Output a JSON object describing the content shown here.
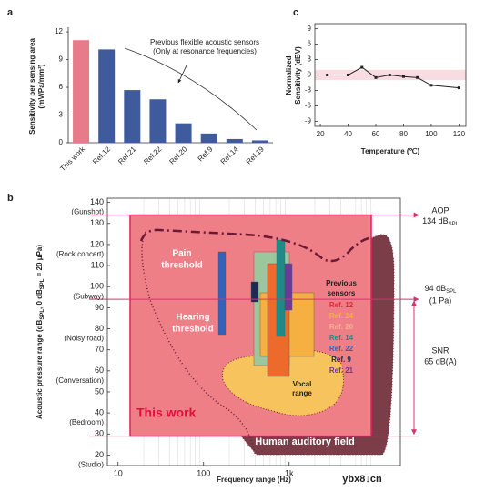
{
  "chart_data": [
    {
      "type": "bar",
      "panel": "a",
      "y_label": [
        "Sensitivity per sensing area",
        "(mV/Pa/mm²)"
      ],
      "categories": [
        "This work",
        "Ref.12",
        "Ref.21",
        "Ref.22",
        "Ref.20",
        "Ref.9",
        "Ref.14",
        "Ref.19"
      ],
      "values": [
        11.1,
        10.1,
        5.7,
        4.7,
        2.1,
        1.0,
        0.4,
        0.25
      ],
      "colors": [
        "#e77b8a",
        "#3f5b9c",
        "#3f5b9c",
        "#3f5b9c",
        "#3f5b9c",
        "#3f5b9c",
        "#3f5b9c",
        "#3f5b9c"
      ],
      "ylim": [
        0,
        12.5
      ],
      "yticks": [
        0,
        3,
        6,
        9,
        12
      ],
      "annotation": [
        "Previous flexible acoustic sensors",
        "(Only at resonance frequencies)"
      ]
    },
    {
      "type": "line",
      "panel": "c",
      "x": [
        25,
        40,
        50,
        60,
        70,
        80,
        90,
        100,
        120
      ],
      "values": [
        0,
        0,
        1.5,
        -0.5,
        0,
        -0.3,
        -0.5,
        -2,
        -2.5
      ],
      "color": "#222222",
      "xlim": [
        16,
        125
      ],
      "xticks": [
        20,
        40,
        60,
        80,
        100,
        120
      ],
      "ylim": [
        -10,
        10
      ],
      "yticks": [
        -9,
        -6,
        -3,
        0,
        3,
        6,
        9
      ],
      "band": [
        -1,
        1
      ],
      "band_color": "#f8dce2",
      "x_label": "Temperature (℃)",
      "y_label": [
        "Normalized",
        "Sensitivity (dBV)"
      ]
    },
    {
      "type": "range",
      "panel": "b",
      "x_label": "Frequency range (Hz)",
      "y_label": [
        "Acoustic pressure range (dB",
        "SPL",
        ", 0 dB",
        "SPL",
        " = 20 μPa)"
      ],
      "xscale": "log",
      "xlim": [
        7.5,
        20000
      ],
      "xticks": [
        10,
        100,
        {
          "value": 1000,
          "label": "1k"
        }
      ],
      "ylim": [
        15,
        142
      ],
      "yticks": [
        20,
        30,
        40,
        50,
        60,
        70,
        80,
        90,
        100,
        110,
        120,
        130,
        140
      ],
      "y_tick_notes": [
        {
          "value": 140,
          "label": "(Gunshot)"
        },
        {
          "value": 120,
          "label": "(Rock concert)"
        },
        {
          "value": 100,
          "label": "(Subway)"
        },
        {
          "value": 80,
          "label": "(Noisy road)"
        },
        {
          "value": 60,
          "label": "(Conversation)"
        },
        {
          "value": 40,
          "label": "(Bedroom)"
        },
        {
          "value": 20,
          "label": "(Studio)"
        }
      ],
      "aop": {
        "name": "AOP",
        "value": 134,
        "label": "134 dB",
        "sub": "SPL"
      },
      "reference": {
        "value": 94,
        "label": "94 dB",
        "sub": "SPL",
        "note": "(1 Pa)"
      },
      "snr": {
        "name": "SNR",
        "value": 65,
        "label": "65 dB(A)"
      },
      "this_work": "This work",
      "auditory_field": "Human auditory field",
      "pain": [
        "Pain",
        "threshold"
      ],
      "hearing": [
        "Hearing",
        "threshold"
      ],
      "vocal": [
        "Vocal",
        "range"
      ],
      "legend_title": [
        "Previous",
        "sensors"
      ],
      "sensors": [
        {
          "name": "Ref. 12",
          "color": "#e3263b"
        },
        {
          "name": "Ref. 24",
          "color": "#f5b041"
        },
        {
          "name": "Ref. 20",
          "color": "#f4b090"
        },
        {
          "name": "Ref. 14",
          "color": "#1f8a86"
        },
        {
          "name": "Ref. 22",
          "color": "#3562b8"
        },
        {
          "name": "Ref. 9",
          "color": "#1c2a55"
        },
        {
          "name": "Ref. 21",
          "color": "#6a3b98"
        }
      ]
    }
  ],
  "watermark": "ybx8↓cn"
}
